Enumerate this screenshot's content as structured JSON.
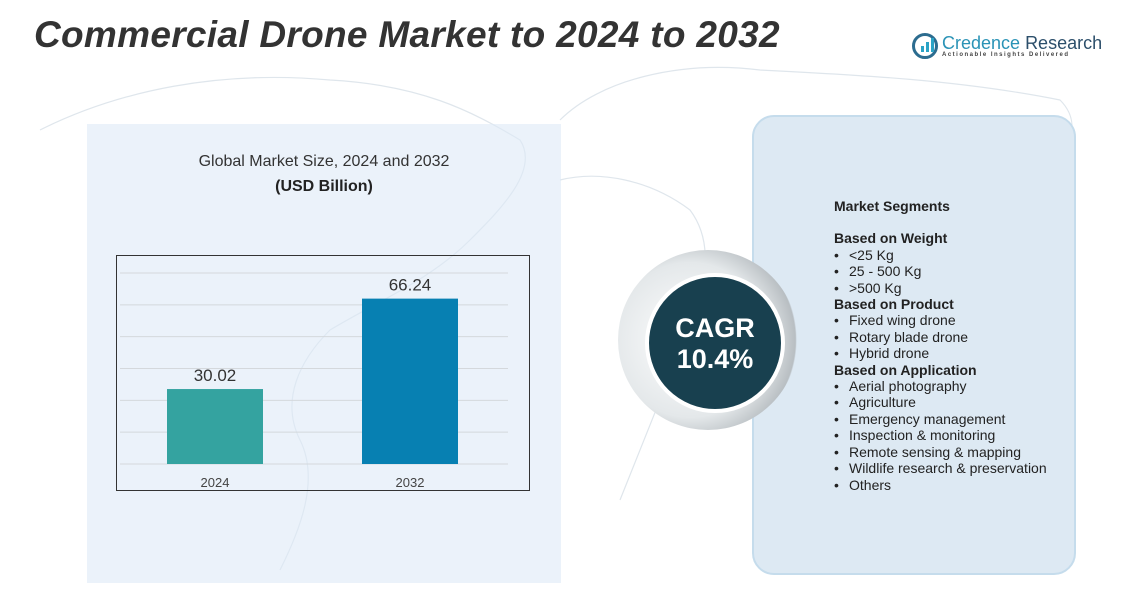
{
  "title": "Commercial Drone Market to 2024 to 2032",
  "logo": {
    "name_part1": "Credence",
    "name_part2": "Research",
    "tagline": "Actionable Insights Delivered"
  },
  "chart_data": {
    "type": "bar",
    "title": "Global Market Size, 2024 and 2032",
    "subtitle": "(USD Billion)",
    "categories": [
      "2024",
      "2032"
    ],
    "values": [
      30.02,
      66.24
    ],
    "data_labels": [
      "30.02",
      "66.24"
    ],
    "colors": [
      "#34a3a0",
      "#0780b2"
    ],
    "ylim": [
      0,
      76.5
    ],
    "grid": true,
    "xlabel": "",
    "ylabel": ""
  },
  "cagr": {
    "label": "CAGR",
    "value": "10.4%"
  },
  "segments": {
    "heading": "Market Segments",
    "groups": [
      {
        "title": "Based on Weight",
        "items": [
          "<25 Kg",
          "25 - 500 Kg",
          ">500 Kg"
        ]
      },
      {
        "title": "Based on Product",
        "items": [
          "Fixed wing drone",
          "Rotary blade drone",
          "Hybrid drone"
        ]
      },
      {
        "title": "Based on Application",
        "items": [
          "Aerial photography",
          "Agriculture",
          "Emergency management",
          "Inspection & monitoring",
          "Remote sensing & mapping",
          "Wildlife research & preservation",
          "Others"
        ]
      }
    ]
  }
}
